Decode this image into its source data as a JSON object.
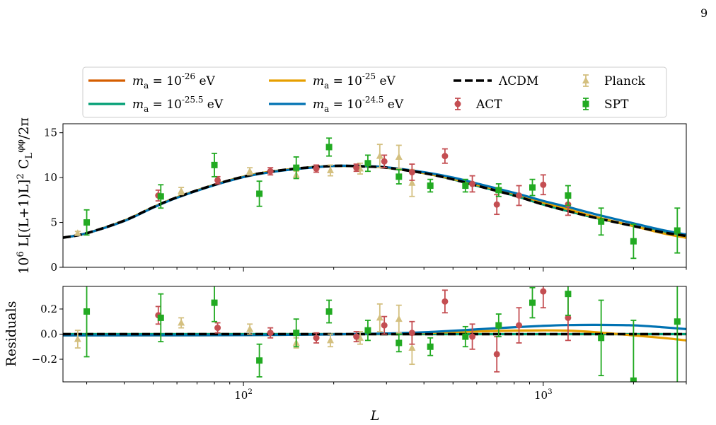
{
  "page_number": "9",
  "colors": {
    "ma_1e-26": "#d55e00",
    "ma_1e-25.5": "#009e73",
    "ma_1e-25": "#e69f00",
    "ma_1e-24.5": "#0072b2",
    "lcdm": "#000000",
    "planck": "#d4c080",
    "act": "#c44e52",
    "spt": "#22aa22"
  },
  "legend": [
    {
      "key": "ma_1e-26",
      "kind": "line",
      "label": "m_a = 10^{-26} eV"
    },
    {
      "key": "ma_1e-25.5",
      "kind": "line",
      "label": "m_a = 10^{-25.5} eV"
    },
    {
      "key": "ma_1e-25",
      "kind": "line",
      "label": "m_a = 10^{-25} eV"
    },
    {
      "key": "ma_1e-24.5",
      "kind": "line",
      "label": "m_a = 10^{-24.5} eV"
    },
    {
      "key": "lcdm",
      "kind": "dashed",
      "label": "ΛCDM"
    },
    {
      "key": "act",
      "kind": "circle",
      "label": "ACT"
    },
    {
      "key": "planck",
      "kind": "triangle",
      "label": "Planck"
    },
    {
      "key": "spt",
      "kind": "square",
      "label": "SPT"
    }
  ],
  "chart_data": [
    {
      "type": "line",
      "panel": "top",
      "xlabel": "L",
      "ylabel": "10^6 L[(L+1)L]^2 C_L^{φφ}/2π",
      "xscale": "log",
      "xlim": [
        25,
        3000
      ],
      "ylim": [
        0,
        16
      ],
      "yticks": [
        0,
        5,
        10,
        15
      ],
      "xticks_major": [
        100,
        1000
      ],
      "xtick_labels": [
        "10^2",
        "10^3"
      ],
      "grid": false,
      "legend_position": "above-plot",
      "series": [
        {
          "key": "lcdm",
          "style": "dashed",
          "x": [
            25,
            30,
            40,
            50,
            60,
            80,
            100,
            120,
            150,
            200,
            250,
            300,
            400,
            500,
            600,
            800,
            1000,
            1200,
            1500,
            2000,
            2500,
            3000
          ],
          "y": [
            3.3,
            3.8,
            5.2,
            6.7,
            7.8,
            9.2,
            10.1,
            10.6,
            11.0,
            11.3,
            11.25,
            11.1,
            10.5,
            9.8,
            9.1,
            8.0,
            7.0,
            6.3,
            5.5,
            4.6,
            3.9,
            3.5
          ]
        },
        {
          "key": "ma_1e-26",
          "style": "solid",
          "x": [
            25,
            30,
            40,
            50,
            60,
            80,
            100,
            120,
            150,
            200,
            250,
            300,
            400,
            500,
            600,
            800,
            1000,
            1200,
            1500,
            2000,
            2500,
            3000
          ],
          "y": [
            3.3,
            3.8,
            5.2,
            6.7,
            7.8,
            9.2,
            10.1,
            10.6,
            11.0,
            11.3,
            11.25,
            11.1,
            10.5,
            9.8,
            9.1,
            8.0,
            7.0,
            6.3,
            5.5,
            4.6,
            3.9,
            3.5
          ]
        },
        {
          "key": "ma_1e-25.5",
          "style": "solid",
          "x": [
            25,
            30,
            40,
            50,
            60,
            80,
            100,
            120,
            150,
            200,
            250,
            300,
            400,
            500,
            600,
            800,
            1000,
            1200,
            1500,
            2000,
            2500,
            3000
          ],
          "y": [
            3.3,
            3.8,
            5.2,
            6.7,
            7.8,
            9.2,
            10.1,
            10.6,
            11.0,
            11.3,
            11.25,
            11.1,
            10.5,
            9.8,
            9.1,
            8.0,
            7.0,
            6.3,
            5.5,
            4.6,
            3.9,
            3.5
          ]
        },
        {
          "key": "ma_1e-25",
          "style": "solid",
          "x": [
            25,
            30,
            40,
            50,
            60,
            80,
            100,
            120,
            150,
            200,
            250,
            300,
            400,
            500,
            600,
            800,
            1000,
            1200,
            1500,
            2000,
            2500,
            3000
          ],
          "y": [
            3.3,
            3.8,
            5.2,
            6.7,
            7.8,
            9.2,
            10.1,
            10.6,
            11.0,
            11.3,
            11.25,
            11.1,
            10.5,
            9.85,
            9.2,
            8.2,
            7.2,
            6.5,
            5.6,
            4.6,
            3.8,
            3.3
          ]
        },
        {
          "key": "ma_1e-24.5",
          "style": "solid",
          "x": [
            25,
            30,
            40,
            50,
            60,
            80,
            100,
            120,
            150,
            200,
            250,
            300,
            400,
            500,
            600,
            800,
            1000,
            1200,
            1500,
            2000,
            2500,
            3000
          ],
          "y": [
            3.3,
            3.8,
            5.15,
            6.65,
            7.75,
            9.15,
            10.05,
            10.55,
            10.95,
            11.3,
            11.28,
            11.15,
            10.6,
            10.0,
            9.35,
            8.3,
            7.4,
            6.75,
            5.9,
            4.9,
            4.15,
            3.65
          ]
        }
      ],
      "points": {
        "act": [
          {
            "x": 52,
            "y": 8.0,
            "err": 0.6
          },
          {
            "x": 82,
            "y": 9.7,
            "err": 0.4
          },
          {
            "x": 123,
            "y": 10.7,
            "err": 0.4
          },
          {
            "x": 175,
            "y": 11.0,
            "err": 0.4
          },
          {
            "x": 238,
            "y": 11.1,
            "err": 0.4
          },
          {
            "x": 295,
            "y": 11.8,
            "err": 0.7
          },
          {
            "x": 365,
            "y": 10.6,
            "err": 0.9
          },
          {
            "x": 470,
            "y": 12.4,
            "err": 0.8
          },
          {
            "x": 580,
            "y": 9.3,
            "err": 0.9
          },
          {
            "x": 700,
            "y": 7.0,
            "err": 1.1
          },
          {
            "x": 830,
            "y": 8.0,
            "err": 1.1
          },
          {
            "x": 1000,
            "y": 9.2,
            "err": 1.1
          },
          {
            "x": 1210,
            "y": 7.0,
            "err": 1.2
          }
        ],
        "planck": [
          {
            "x": 28,
            "y": 3.8,
            "err": 0.2
          },
          {
            "x": 62,
            "y": 8.5,
            "err": 0.4
          },
          {
            "x": 105,
            "y": 10.7,
            "err": 0.4
          },
          {
            "x": 150,
            "y": 10.3,
            "err": 0.4
          },
          {
            "x": 195,
            "y": 10.8,
            "err": 0.6
          },
          {
            "x": 245,
            "y": 11.0,
            "err": 0.6
          },
          {
            "x": 285,
            "y": 12.4,
            "err": 1.3
          },
          {
            "x": 330,
            "y": 12.3,
            "err": 1.3
          },
          {
            "x": 365,
            "y": 9.4,
            "err": 1.5
          }
        ],
        "spt": [
          {
            "x": 30,
            "y": 5.0,
            "err": 1.4
          },
          {
            "x": 53,
            "y": 7.9,
            "err": 1.3
          },
          {
            "x": 80,
            "y": 11.4,
            "err": 1.3
          },
          {
            "x": 113,
            "y": 8.2,
            "err": 1.4
          },
          {
            "x": 150,
            "y": 11.1,
            "err": 1.2
          },
          {
            "x": 193,
            "y": 13.4,
            "err": 1.0
          },
          {
            "x": 260,
            "y": 11.6,
            "err": 0.9
          },
          {
            "x": 330,
            "y": 10.1,
            "err": 0.8
          },
          {
            "x": 420,
            "y": 9.1,
            "err": 0.7
          },
          {
            "x": 550,
            "y": 9.1,
            "err": 0.7
          },
          {
            "x": 710,
            "y": 8.6,
            "err": 0.7
          },
          {
            "x": 920,
            "y": 8.9,
            "err": 0.9
          },
          {
            "x": 1210,
            "y": 8.0,
            "err": 1.1
          },
          {
            "x": 1560,
            "y": 5.1,
            "err": 1.5
          },
          {
            "x": 2000,
            "y": 2.9,
            "err": 1.9
          },
          {
            "x": 2800,
            "y": 4.1,
            "err": 2.5
          }
        ]
      }
    },
    {
      "type": "line",
      "panel": "bottom",
      "xlabel": "L",
      "ylabel": "Residuals",
      "xscale": "log",
      "xlim": [
        25,
        3000
      ],
      "ylim": [
        -0.38,
        0.38
      ],
      "yticks": [
        -0.2,
        0.0,
        0.2
      ],
      "ytick_labels": [
        "−0.2",
        "0.0",
        "0.2"
      ],
      "xticks_major": [
        100,
        1000
      ],
      "xtick_labels": [
        "10^2",
        "10^3"
      ],
      "grid": false,
      "series": [
        {
          "key": "lcdm",
          "style": "dashed",
          "x": [
            25,
            3000
          ],
          "y": [
            0,
            0
          ]
        },
        {
          "key": "ma_1e-26",
          "style": "solid",
          "x": [
            25,
            3000
          ],
          "y": [
            0.0,
            0.0
          ]
        },
        {
          "key": "ma_1e-25.5",
          "style": "solid",
          "x": [
            25,
            3000
          ],
          "y": [
            0.0,
            0.0
          ]
        },
        {
          "key": "ma_1e-25",
          "style": "solid",
          "x": [
            25,
            100,
            200,
            300,
            400,
            500,
            600,
            800,
            1000,
            1200,
            1500,
            2000,
            2500,
            3000
          ],
          "y": [
            -0.01,
            -0.008,
            -0.002,
            0.003,
            0.01,
            0.016,
            0.022,
            0.028,
            0.03,
            0.028,
            0.015,
            -0.01,
            -0.03,
            -0.05
          ]
        },
        {
          "key": "ma_1e-24.5",
          "style": "solid",
          "x": [
            25,
            100,
            200,
            300,
            400,
            500,
            600,
            800,
            1000,
            1200,
            1500,
            2000,
            2500,
            3000
          ],
          "y": [
            -0.01,
            -0.008,
            -0.002,
            0.005,
            0.015,
            0.027,
            0.038,
            0.055,
            0.066,
            0.072,
            0.074,
            0.07,
            0.055,
            0.04
          ]
        }
      ],
      "points": {
        "act": [
          {
            "x": 52,
            "y": 0.15,
            "err": 0.07
          },
          {
            "x": 82,
            "y": 0.05,
            "err": 0.04
          },
          {
            "x": 123,
            "y": 0.01,
            "err": 0.04
          },
          {
            "x": 175,
            "y": -0.03,
            "err": 0.04
          },
          {
            "x": 238,
            "y": -0.02,
            "err": 0.04
          },
          {
            "x": 295,
            "y": 0.07,
            "err": 0.07
          },
          {
            "x": 365,
            "y": 0.01,
            "err": 0.09
          },
          {
            "x": 470,
            "y": 0.26,
            "err": 0.09
          },
          {
            "x": 580,
            "y": -0.02,
            "err": 0.1
          },
          {
            "x": 700,
            "y": -0.16,
            "err": 0.14
          },
          {
            "x": 830,
            "y": 0.07,
            "err": 0.14
          },
          {
            "x": 1000,
            "y": 0.34,
            "err": 0.13
          },
          {
            "x": 1210,
            "y": 0.13,
            "err": 0.18
          }
        ],
        "planck": [
          {
            "x": 28,
            "y": -0.04,
            "err": 0.07
          },
          {
            "x": 62,
            "y": 0.09,
            "err": 0.04
          },
          {
            "x": 105,
            "y": 0.04,
            "err": 0.04
          },
          {
            "x": 150,
            "y": -0.07,
            "err": 0.04
          },
          {
            "x": 195,
            "y": -0.05,
            "err": 0.05
          },
          {
            "x": 245,
            "y": -0.03,
            "err": 0.05
          },
          {
            "x": 285,
            "y": 0.13,
            "err": 0.11
          },
          {
            "x": 330,
            "y": 0.12,
            "err": 0.11
          },
          {
            "x": 365,
            "y": -0.11,
            "err": 0.13
          }
        ],
        "spt": [
          {
            "x": 30,
            "y": 0.18,
            "err": 0.36
          },
          {
            "x": 53,
            "y": 0.13,
            "err": 0.19
          },
          {
            "x": 80,
            "y": 0.25,
            "err": 0.15
          },
          {
            "x": 113,
            "y": -0.21,
            "err": 0.13
          },
          {
            "x": 150,
            "y": 0.01,
            "err": 0.11
          },
          {
            "x": 193,
            "y": 0.18,
            "err": 0.09
          },
          {
            "x": 260,
            "y": 0.03,
            "err": 0.08
          },
          {
            "x": 330,
            "y": -0.07,
            "err": 0.07
          },
          {
            "x": 420,
            "y": -0.1,
            "err": 0.07
          },
          {
            "x": 550,
            "y": -0.02,
            "err": 0.08
          },
          {
            "x": 710,
            "y": 0.07,
            "err": 0.09
          },
          {
            "x": 920,
            "y": 0.25,
            "err": 0.12
          },
          {
            "x": 1210,
            "y": 0.32,
            "err": 0.17
          },
          {
            "x": 1560,
            "y": -0.03,
            "err": 0.3
          },
          {
            "x": 2000,
            "y": -0.37,
            "err": 0.48
          },
          {
            "x": 2800,
            "y": 0.1,
            "err": 0.6
          }
        ]
      }
    }
  ]
}
